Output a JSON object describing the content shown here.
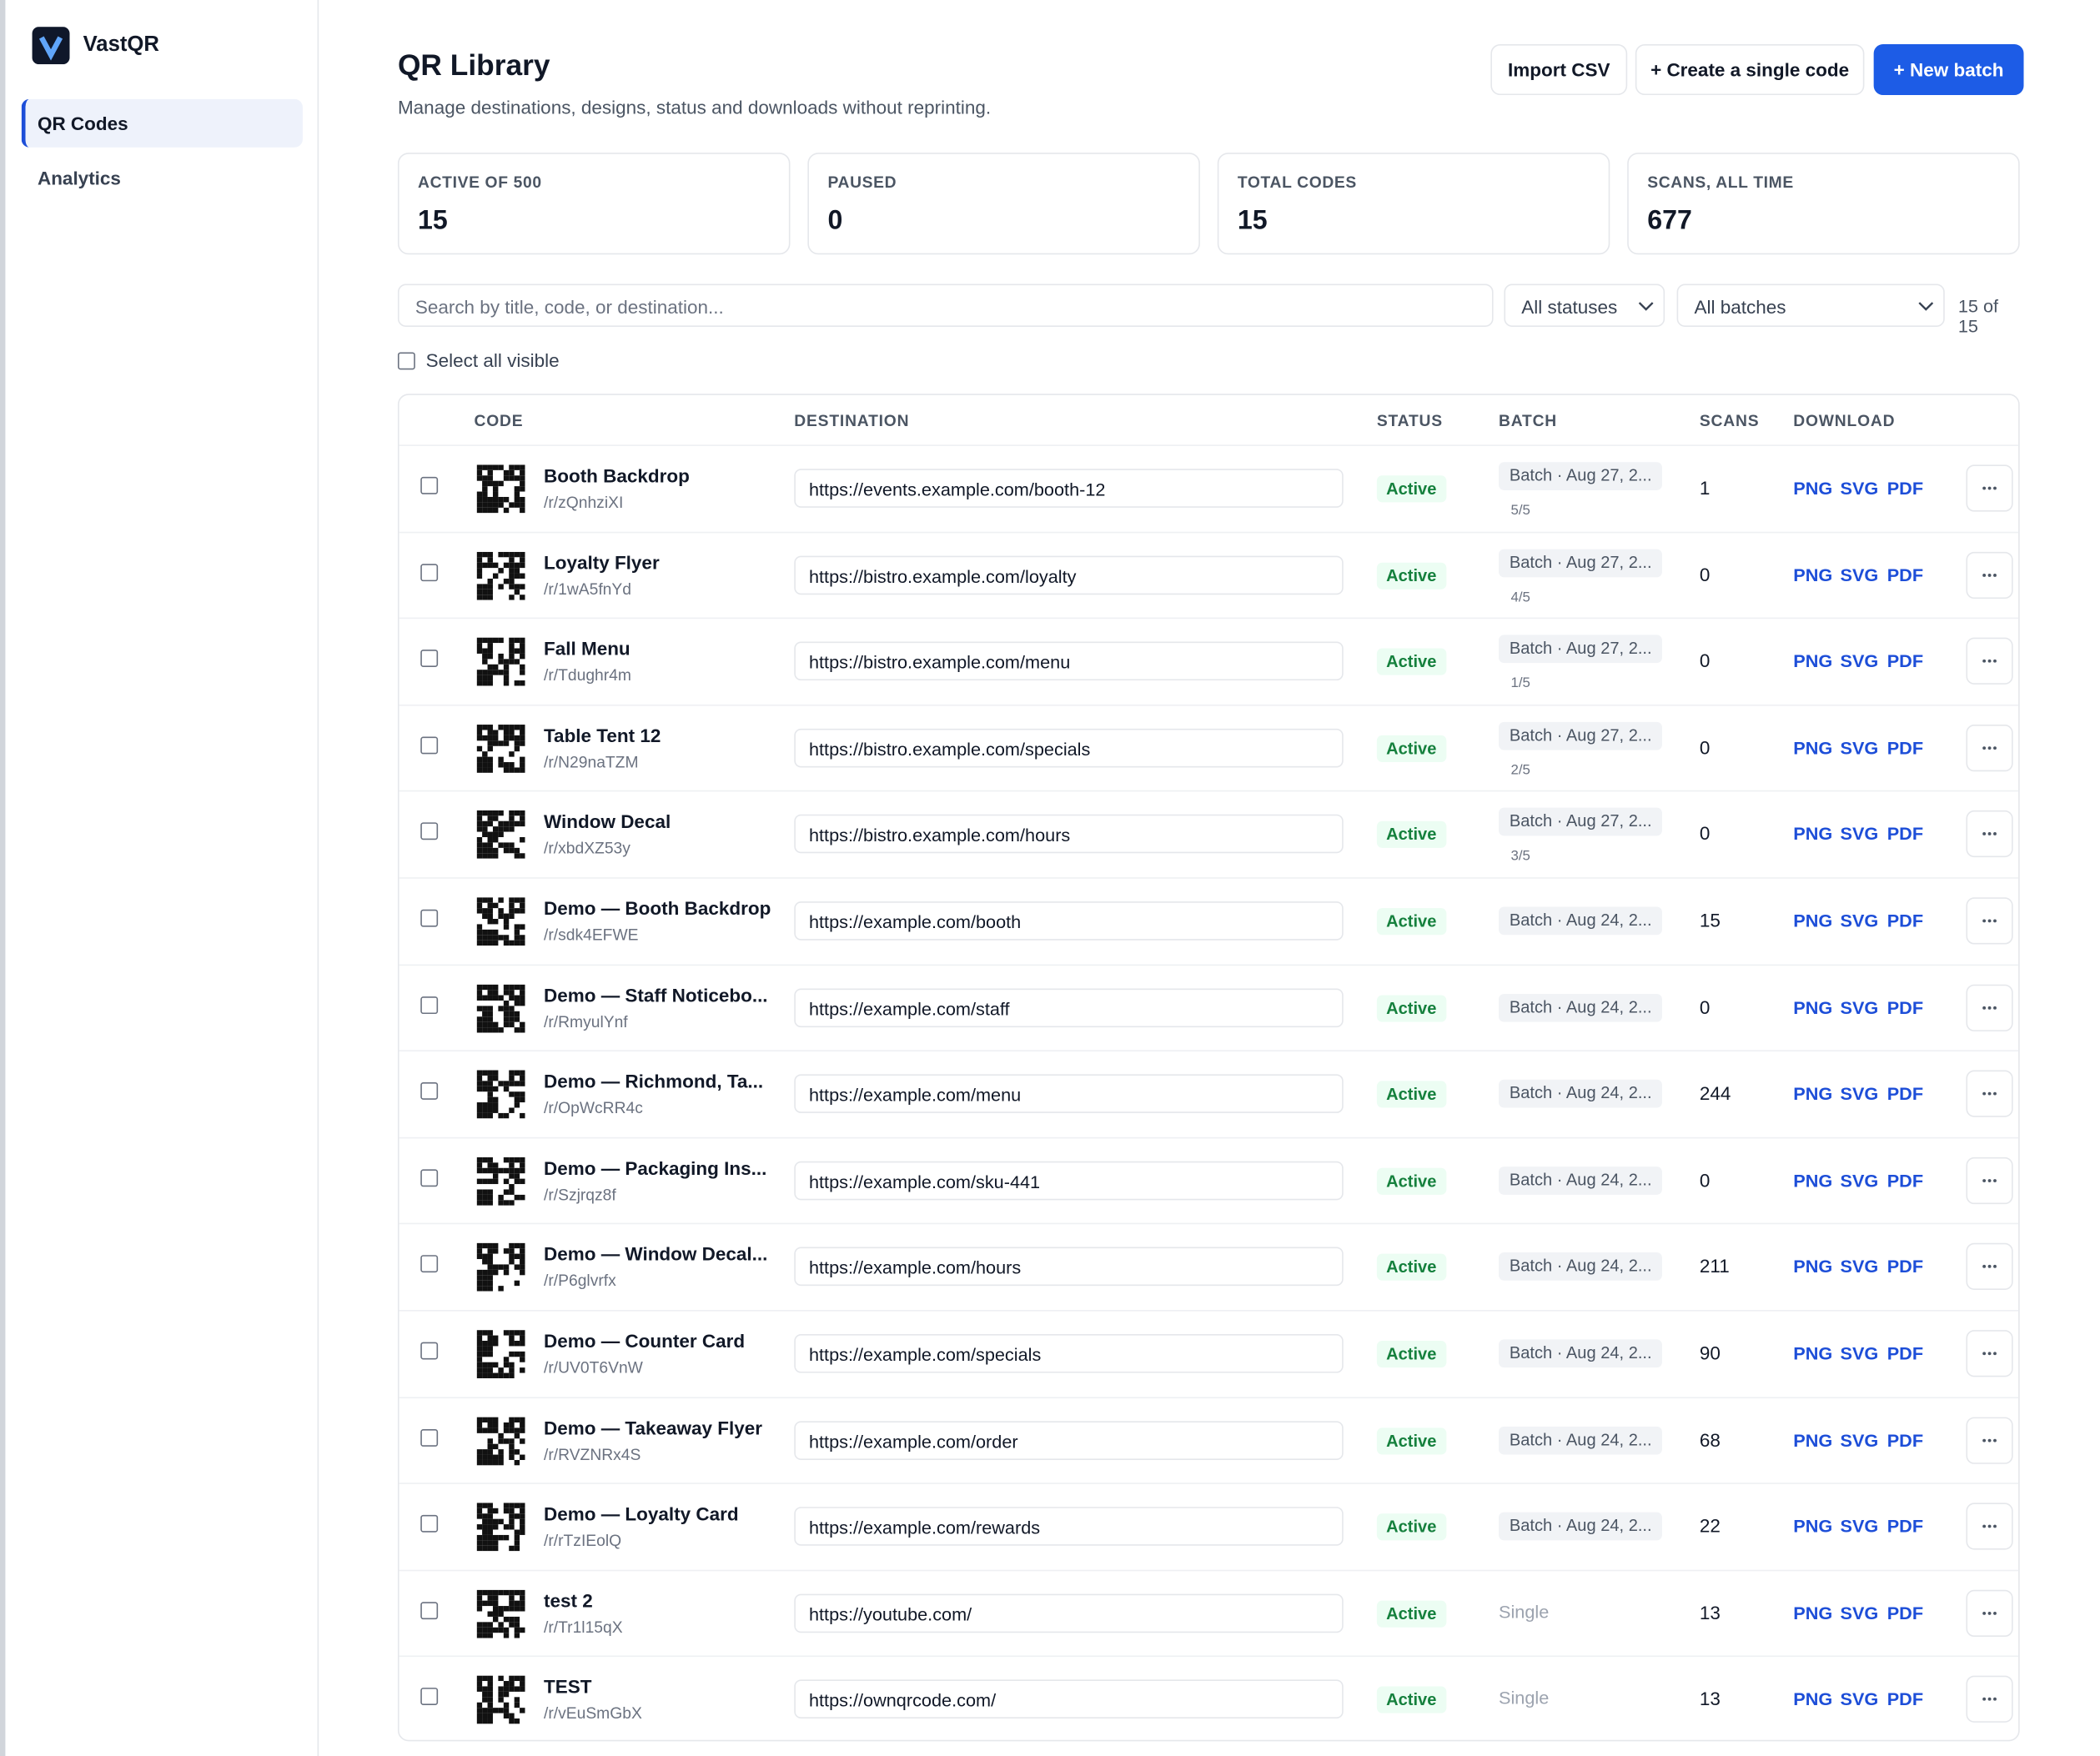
{
  "sidebar": {
    "brand": "VastQR",
    "nav": [
      "QR Codes",
      "Analytics"
    ]
  },
  "header": {
    "title": "QR Library",
    "subtitle": "Manage destinations, designs, status and downloads without reprinting.",
    "buttons": [
      "Import CSV",
      "+ Create a single code",
      "+ New batch"
    ]
  },
  "stats": [
    {
      "label": "ACTIVE OF 500",
      "value": 15
    },
    {
      "label": "PAUSED",
      "value": 0
    },
    {
      "label": "TOTAL CODES",
      "value": 15
    },
    {
      "label": "SCANS, ALL TIME",
      "value": 677
    }
  ],
  "filters": {
    "search_placeholder": "Search by title, code, or destination...",
    "status": "All statuses",
    "batch": "All batches",
    "count": "15 of 15",
    "select_all": "Select all visible"
  },
  "table": {
    "headers": [
      "CODE",
      "DESTINATION",
      "STATUS",
      "BATCH",
      "SCANS",
      "DOWNLOAD"
    ],
    "download_formats": [
      "PNG",
      "SVG",
      "PDF"
    ],
    "rows": [
      {
        "title": "Booth Backdrop",
        "code": "/r/zQnhziXI",
        "destination": "https://events.example.com/booth-12",
        "status": "Active",
        "batch": "Batch · Aug 27, 2...",
        "batch_sub": "5/5",
        "scans": 1
      },
      {
        "title": "Loyalty Flyer",
        "code": "/r/1wA5fnYd",
        "destination": "https://bistro.example.com/loyalty",
        "status": "Active",
        "batch": "Batch · Aug 27, 2...",
        "batch_sub": "4/5",
        "scans": 0
      },
      {
        "title": "Fall Menu",
        "code": "/r/Tdughr4m",
        "destination": "https://bistro.example.com/menu",
        "status": "Active",
        "batch": "Batch · Aug 27, 2...",
        "batch_sub": "1/5",
        "scans": 0
      },
      {
        "title": "Table Tent 12",
        "code": "/r/N29naTZM",
        "destination": "https://bistro.example.com/specials",
        "status": "Active",
        "batch": "Batch · Aug 27, 2...",
        "batch_sub": "2/5",
        "scans": 0
      },
      {
        "title": "Window Decal",
        "code": "/r/xbdXZ53y",
        "destination": "https://bistro.example.com/hours",
        "status": "Active",
        "batch": "Batch · Aug 27, 2...",
        "batch_sub": "3/5",
        "scans": 0
      },
      {
        "title": "Demo — Booth Backdrop",
        "code": "/r/sdk4EFWE",
        "destination": "https://example.com/booth",
        "status": "Active",
        "batch": "Batch · Aug 24, 2...",
        "scans": 15
      },
      {
        "title": "Demo — Staff Noticebo...",
        "code": "/r/RmyulYnf",
        "destination": "https://example.com/staff",
        "status": "Active",
        "batch": "Batch · Aug 24, 2...",
        "scans": 0
      },
      {
        "title": "Demo — Richmond, Ta...",
        "code": "/r/OpWcRR4c",
        "destination": "https://example.com/menu",
        "status": "Active",
        "batch": "Batch · Aug 24, 2...",
        "scans": 244
      },
      {
        "title": "Demo — Packaging Ins...",
        "code": "/r/Szjrqz8f",
        "destination": "https://example.com/sku-441",
        "status": "Active",
        "batch": "Batch · Aug 24, 2...",
        "scans": 0
      },
      {
        "title": "Demo — Window Decal...",
        "code": "/r/P6glvrfx",
        "destination": "https://example.com/hours",
        "status": "Active",
        "batch": "Batch · Aug 24, 2...",
        "scans": 211
      },
      {
        "title": "Demo — Counter Card",
        "code": "/r/UV0T6VnW",
        "destination": "https://example.com/specials",
        "status": "Active",
        "batch": "Batch · Aug 24, 2...",
        "scans": 90
      },
      {
        "title": "Demo — Takeaway Flyer",
        "code": "/r/RVZNRx4S",
        "destination": "https://example.com/order",
        "status": "Active",
        "batch": "Batch · Aug 24, 2...",
        "scans": 68
      },
      {
        "title": "Demo — Loyalty Card",
        "code": "/r/rTzIEolQ",
        "destination": "https://example.com/rewards",
        "status": "Active",
        "batch": "Batch · Aug 24, 2...",
        "scans": 22
      },
      {
        "title": "test 2",
        "code": "/r/Tr1l15qX",
        "destination": "https://youtube.com/",
        "status": "Active",
        "batch": "Single",
        "scans": 13
      },
      {
        "title": "TEST",
        "code": "/r/vEuSmGbX",
        "destination": "https://ownqrcode.com/",
        "status": "Active",
        "batch": "Single",
        "scans": 13
      }
    ]
  }
}
